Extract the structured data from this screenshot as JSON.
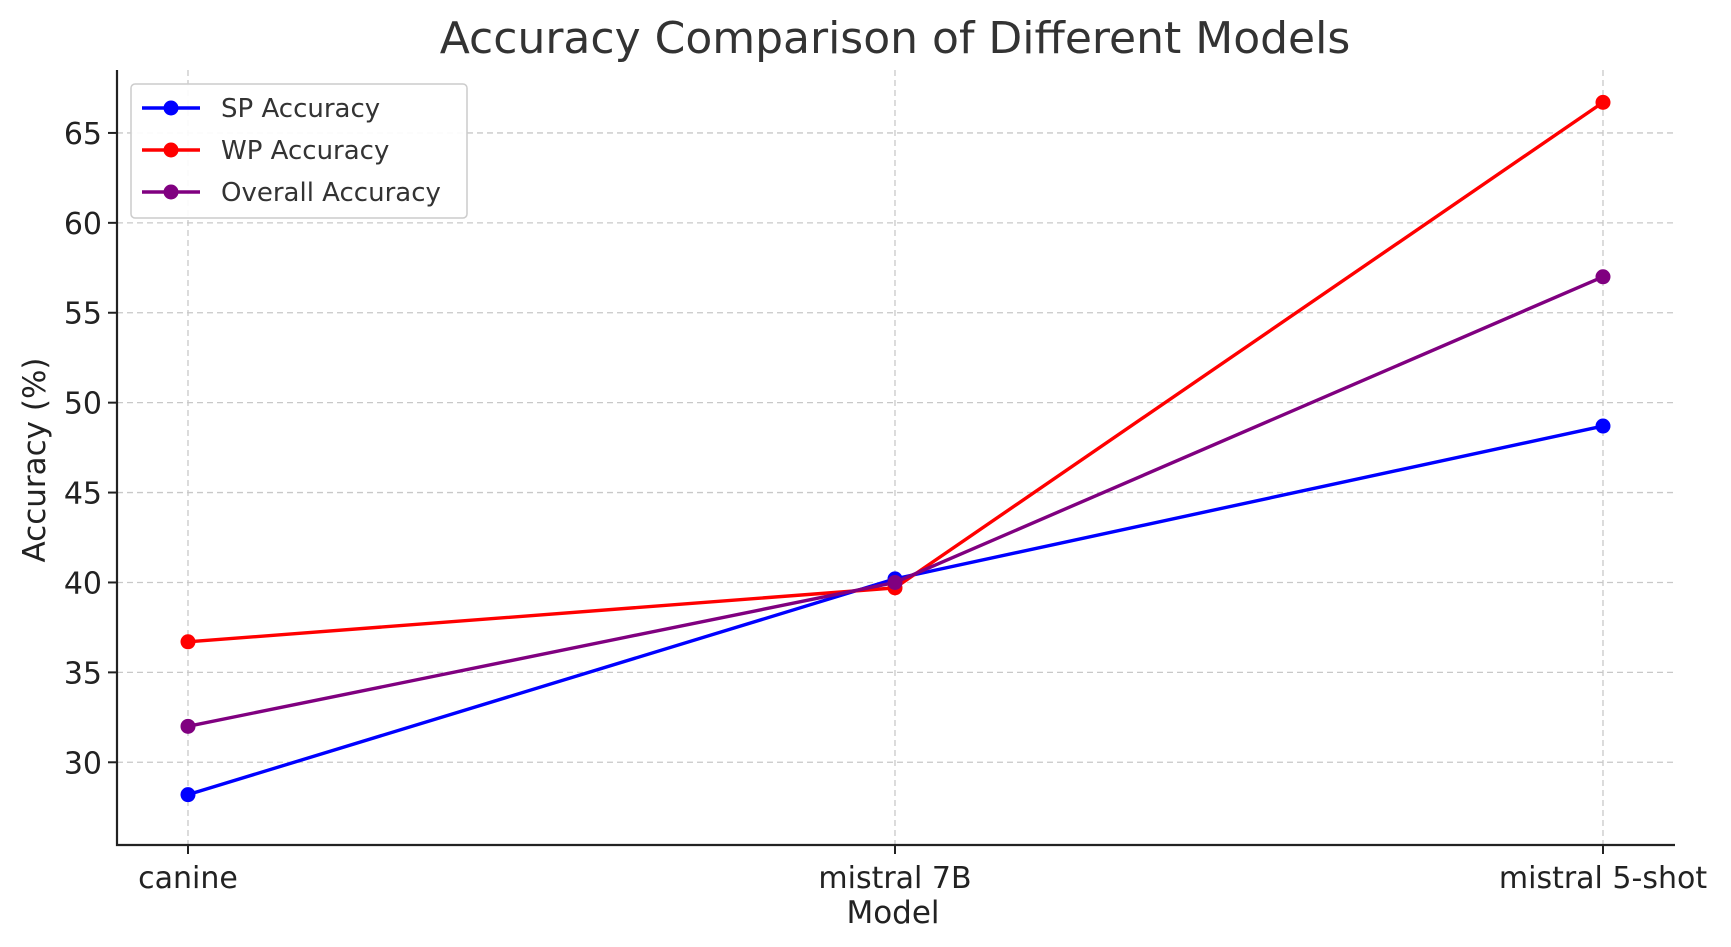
{
  "chart_data": {
    "type": "line",
    "title": "Accuracy Comparison of Different Models",
    "xlabel": "Model",
    "ylabel": "Accuracy (%)",
    "categories": [
      "canine",
      "mistral 7B",
      "mistral 5-shot"
    ],
    "ylim": [
      25.4,
      68.5
    ],
    "yticks": [
      30,
      35,
      40,
      45,
      50,
      55,
      60,
      65
    ],
    "grid": true,
    "legend_position": "top-left",
    "series": [
      {
        "name": "SP Accuracy",
        "color": "#0000ff",
        "values": [
          28.2,
          40.2,
          48.7
        ]
      },
      {
        "name": "WP Accuracy",
        "color": "#ff0000",
        "values": [
          36.7,
          39.7,
          66.7
        ]
      },
      {
        "name": "Overall Accuracy",
        "color": "#800080",
        "values": [
          32.0,
          40.0,
          57.0
        ]
      }
    ]
  }
}
